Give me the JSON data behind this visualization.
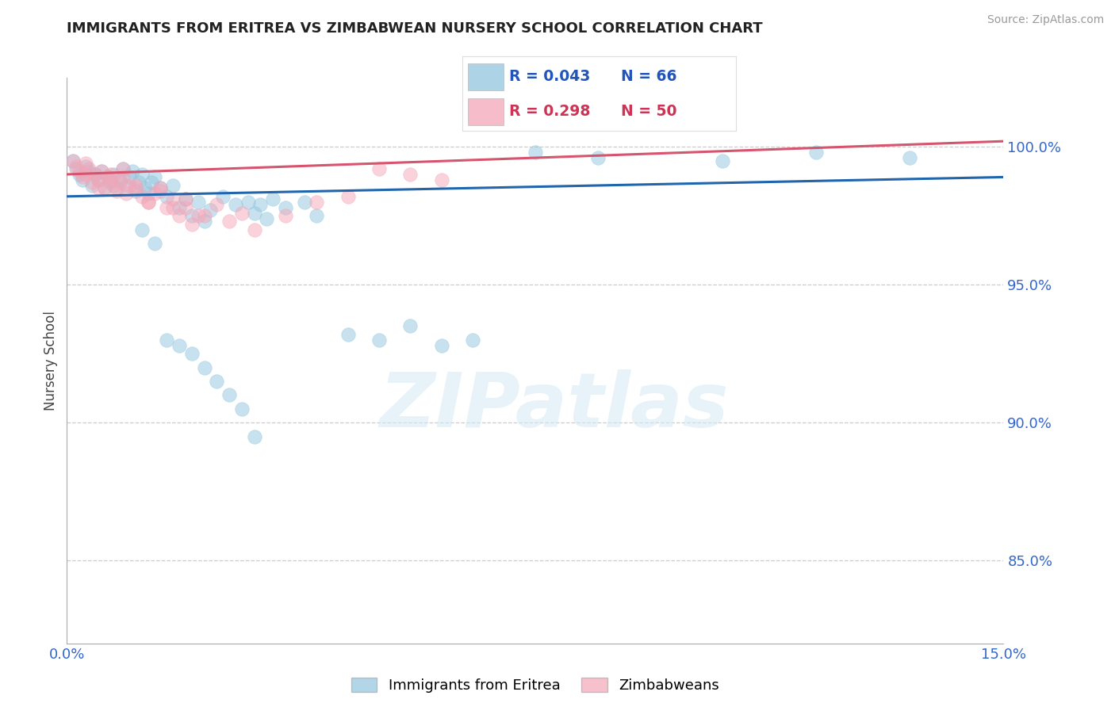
{
  "title": "IMMIGRANTS FROM ERITREA VS ZIMBABWEAN NURSERY SCHOOL CORRELATION CHART",
  "source": "Source: ZipAtlas.com",
  "ylabel_left": "Nursery School",
  "legend_label1": "Immigrants from Eritrea",
  "legend_label2": "Zimbabweans",
  "R1": 0.043,
  "N1": 66,
  "R2": 0.298,
  "N2": 50,
  "color1": "#92c5de",
  "color2": "#f4a6b8",
  "trendline1_color": "#2166ac",
  "trendline2_color": "#d6546e",
  "xmin": 0.0,
  "xmax": 15.0,
  "ymin": 82.0,
  "ymax": 102.5,
  "yticks": [
    85.0,
    90.0,
    95.0,
    100.0
  ],
  "watermark": "ZIPatlas",
  "trendline1_x0": 0.0,
  "trendline1_y0": 98.2,
  "trendline1_x1": 15.0,
  "trendline1_y1": 98.9,
  "trendline2_x0": 0.0,
  "trendline2_y0": 99.0,
  "trendline2_x1": 15.0,
  "trendline2_y1": 100.2,
  "scatter1_x": [
    0.1,
    0.15,
    0.2,
    0.25,
    0.3,
    0.35,
    0.4,
    0.45,
    0.5,
    0.55,
    0.6,
    0.65,
    0.7,
    0.75,
    0.8,
    0.85,
    0.9,
    0.95,
    1.0,
    1.05,
    1.1,
    1.15,
    1.2,
    1.25,
    1.3,
    1.35,
    1.4,
    1.5,
    1.6,
    1.7,
    1.8,
    1.9,
    2.0,
    2.1,
    2.2,
    2.3,
    2.5,
    2.7,
    2.9,
    3.0,
    3.1,
    3.2,
    3.3,
    3.5,
    3.8,
    4.0,
    4.5,
    5.0,
    5.5,
    6.0,
    6.5,
    7.5,
    8.5,
    10.5,
    12.0,
    13.5,
    1.2,
    1.4,
    1.6,
    1.8,
    2.0,
    2.2,
    2.4,
    2.6,
    2.8,
    3.0
  ],
  "scatter1_y": [
    99.5,
    99.2,
    99.0,
    98.8,
    99.3,
    99.1,
    98.6,
    99.0,
    98.8,
    99.1,
    98.5,
    98.9,
    98.7,
    99.0,
    98.5,
    98.8,
    99.2,
    98.6,
    98.9,
    99.1,
    98.4,
    98.7,
    99.0,
    98.5,
    98.3,
    98.7,
    98.9,
    98.5,
    98.2,
    98.6,
    97.8,
    98.1,
    97.5,
    98.0,
    97.3,
    97.7,
    98.2,
    97.9,
    98.0,
    97.6,
    97.9,
    97.4,
    98.1,
    97.8,
    98.0,
    97.5,
    93.2,
    93.0,
    93.5,
    92.8,
    93.0,
    99.8,
    99.6,
    99.5,
    99.8,
    99.6,
    97.0,
    96.5,
    93.0,
    92.8,
    92.5,
    92.0,
    91.5,
    91.0,
    90.5,
    89.5
  ],
  "scatter2_x": [
    0.1,
    0.15,
    0.2,
    0.25,
    0.3,
    0.35,
    0.4,
    0.45,
    0.5,
    0.55,
    0.6,
    0.65,
    0.7,
    0.75,
    0.8,
    0.85,
    0.9,
    0.95,
    1.0,
    1.1,
    1.2,
    1.3,
    1.4,
    1.5,
    1.6,
    1.7,
    1.8,
    1.9,
    2.0,
    2.2,
    2.4,
    2.6,
    2.8,
    3.0,
    3.5,
    4.0,
    4.5,
    5.0,
    5.5,
    6.0,
    0.3,
    0.5,
    0.7,
    0.9,
    1.1,
    1.3,
    1.5,
    1.7,
    1.9,
    2.1
  ],
  "scatter2_y": [
    99.5,
    99.3,
    99.1,
    98.9,
    99.4,
    99.2,
    98.7,
    99.0,
    98.8,
    99.1,
    98.5,
    98.9,
    99.0,
    98.6,
    98.4,
    98.7,
    98.9,
    98.3,
    98.6,
    98.5,
    98.2,
    98.0,
    98.3,
    98.5,
    97.8,
    98.1,
    97.5,
    97.8,
    97.2,
    97.5,
    97.9,
    97.3,
    97.6,
    97.0,
    97.5,
    98.0,
    98.2,
    99.2,
    99.0,
    98.8,
    99.0,
    98.5,
    98.8,
    99.2,
    98.6,
    98.0,
    98.4,
    97.8,
    98.1,
    97.5
  ]
}
